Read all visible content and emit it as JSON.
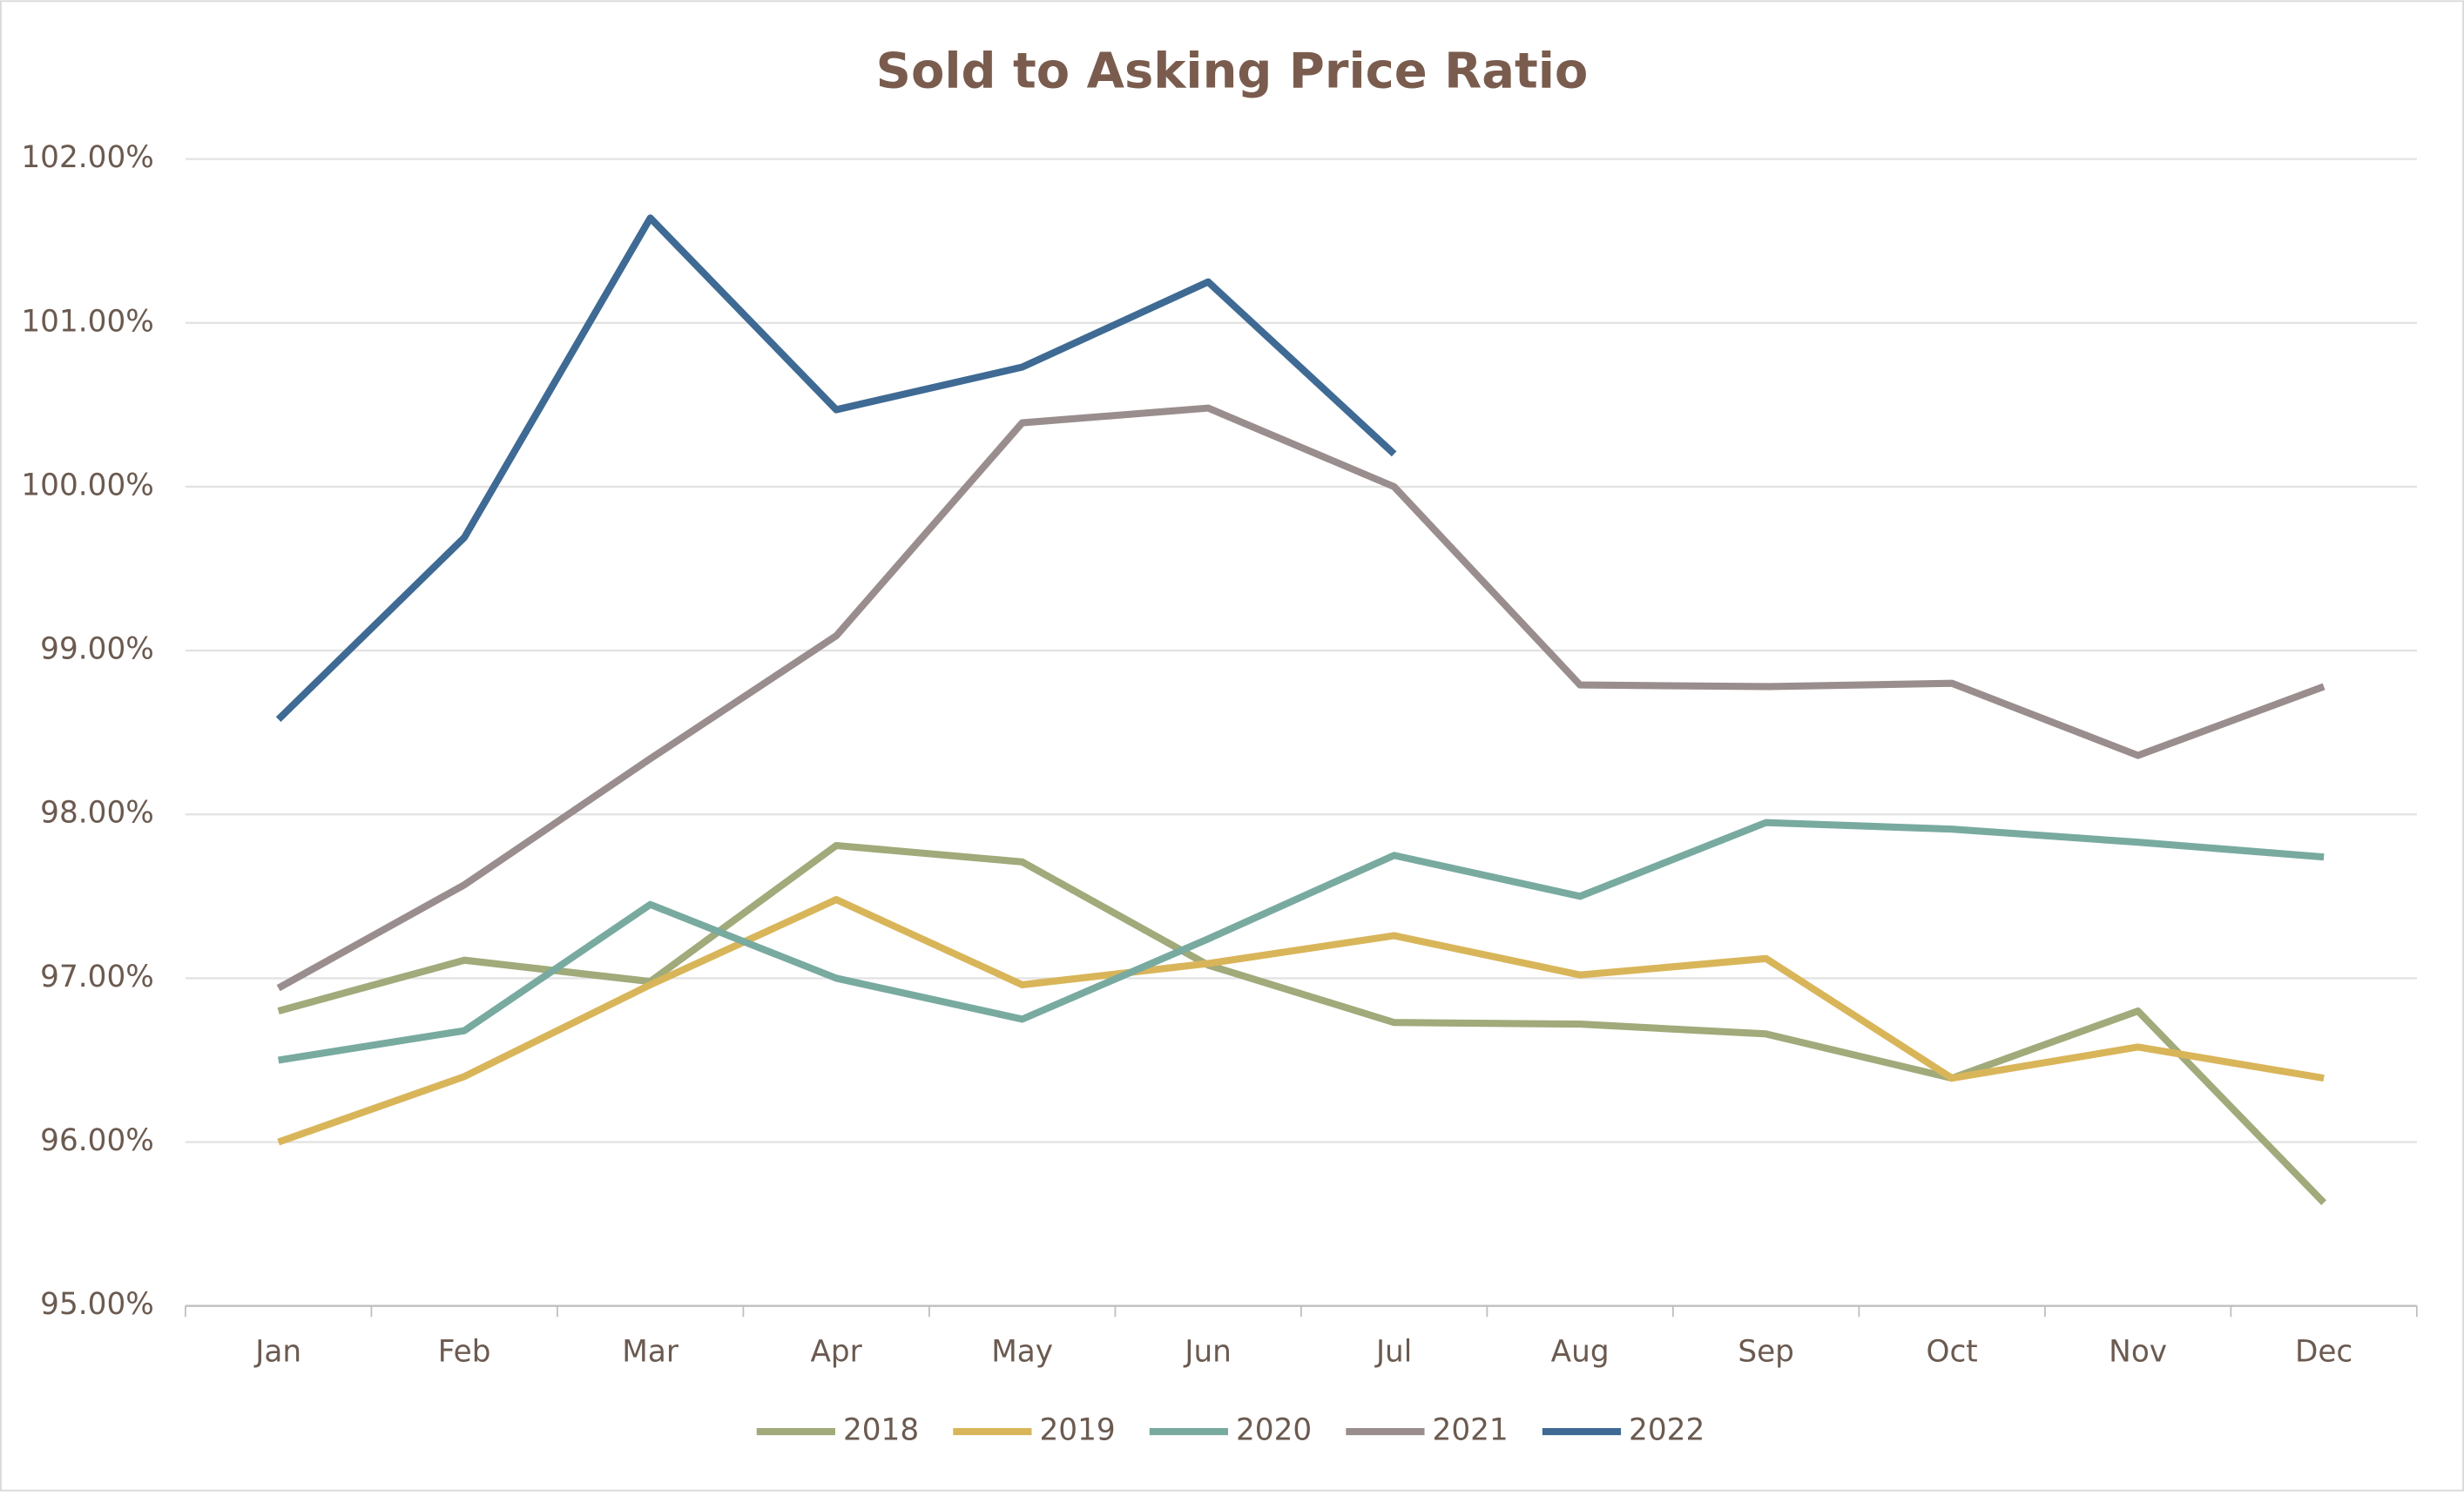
{
  "chart_data": {
    "type": "line",
    "title": "Sold to Asking Price Ratio",
    "categories": [
      "Jan",
      "Feb",
      "Mar",
      "Apr",
      "May",
      "Jun",
      "Jul",
      "Aug",
      "Sep",
      "Oct",
      "Nov",
      "Dec"
    ],
    "series": [
      {
        "name": "2018",
        "color": "#a0aa7a",
        "values": [
          96.8,
          97.11,
          96.98,
          97.81,
          97.71,
          97.08,
          96.73,
          96.72,
          96.66,
          96.39,
          96.8,
          95.63
        ]
      },
      {
        "name": "2019",
        "color": "#d9b55a",
        "values": [
          96.0,
          96.4,
          96.96,
          97.48,
          96.96,
          97.09,
          97.26,
          97.02,
          97.12,
          96.39,
          96.58,
          96.39
        ]
      },
      {
        "name": "2020",
        "color": "#78aaa0",
        "values": [
          96.5,
          96.68,
          97.45,
          97.0,
          96.75,
          97.24,
          97.75,
          97.5,
          97.95,
          97.91,
          97.83,
          97.74
        ]
      },
      {
        "name": "2021",
        "color": "#9a8d8d",
        "values": [
          96.94,
          97.57,
          98.34,
          99.09,
          100.39,
          100.48,
          100.0,
          98.79,
          98.78,
          98.8,
          98.36,
          98.78
        ]
      },
      {
        "name": "2022",
        "color": "#3e6a94",
        "values": [
          98.58,
          99.69,
          101.64,
          100.47,
          100.73,
          101.25,
          100.2,
          null,
          null,
          null,
          null,
          null
        ]
      }
    ],
    "ylim": [
      95,
      102
    ],
    "yticks": [
      {
        "value": 95,
        "label": "95.00%"
      },
      {
        "value": 96,
        "label": "96.00%"
      },
      {
        "value": 97,
        "label": "97.00%"
      },
      {
        "value": 98,
        "label": "98.00%"
      },
      {
        "value": 99,
        "label": "99.00%"
      },
      {
        "value": 100,
        "label": "100.00%"
      },
      {
        "value": 101,
        "label": "101.00%"
      },
      {
        "value": 102,
        "label": "102.00%"
      }
    ],
    "grid": true,
    "legend": "bottom"
  }
}
